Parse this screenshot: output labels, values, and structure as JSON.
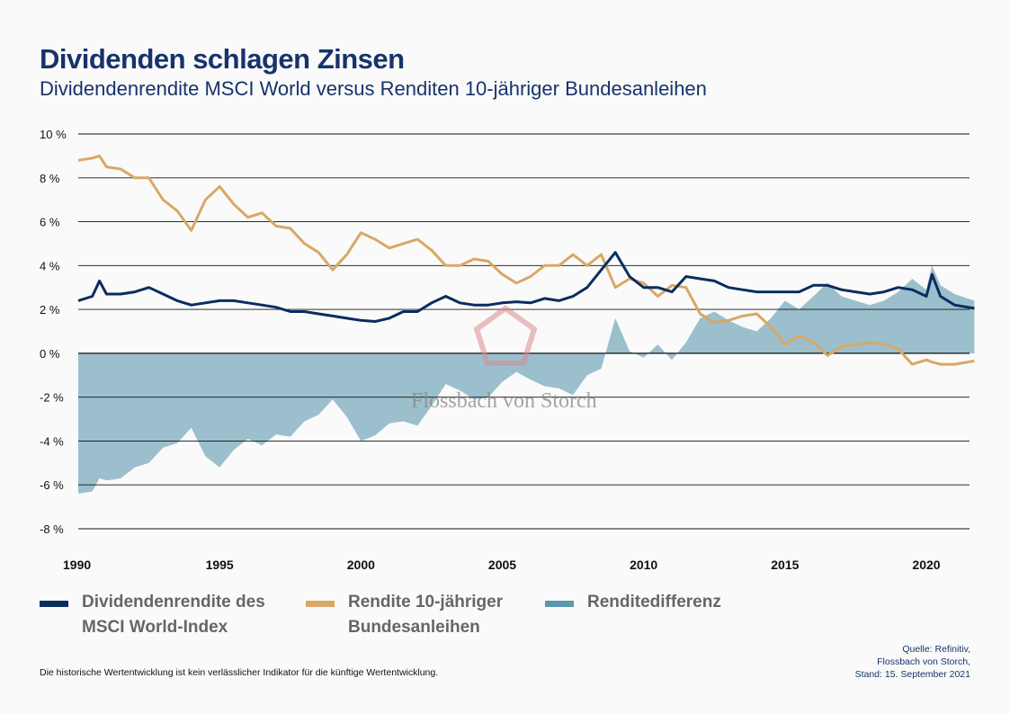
{
  "header": {
    "title": "Dividenden schlagen Zinsen",
    "subtitle": "Dividendenrendite MSCI World versus Renditen 10-jähriger Bundesanleihen"
  },
  "watermark": "Flossbach von Storch",
  "chart_data": {
    "type": "line",
    "title": "Dividenden schlagen Zinsen",
    "xlim": [
      1990,
      2021.7
    ],
    "ylim": [
      -8,
      10
    ],
    "yticks": [
      10,
      8,
      6,
      4,
      2,
      0,
      -2,
      -4,
      -6,
      -8
    ],
    "ytick_labels": [
      "10 %",
      "8 %",
      "6 %",
      "4 %",
      "2 %",
      "0 %",
      "-2 %",
      "-4 %",
      "-6 %",
      "-8 %"
    ],
    "xticks": [
      1990,
      1995,
      2000,
      2005,
      2010,
      2015,
      2020
    ],
    "xtick_labels": [
      "1990",
      "1995",
      "2000",
      "2005",
      "2010",
      "2015",
      "2020"
    ],
    "grid": true,
    "legend_placement": "bottom",
    "x": [
      1990,
      1990.5,
      1990.75,
      1991,
      1991.5,
      1992,
      1992.5,
      1993,
      1993.5,
      1994,
      1994.5,
      1995,
      1995.5,
      1996,
      1996.5,
      1997,
      1997.5,
      1998,
      1998.5,
      1999,
      1999.5,
      2000,
      2000.5,
      2001,
      2001.5,
      2002,
      2002.5,
      2003,
      2003.5,
      2004,
      2004.5,
      2005,
      2005.5,
      2006,
      2006.5,
      2007,
      2007.5,
      2008,
      2008.5,
      2009,
      2009.5,
      2010,
      2010.5,
      2011,
      2011.5,
      2012,
      2012.5,
      2013,
      2013.5,
      2014,
      2014.5,
      2015,
      2015.5,
      2016,
      2016.5,
      2017,
      2017.5,
      2018,
      2018.5,
      2019,
      2019.5,
      2020,
      2020.2,
      2020.5,
      2021,
      2021.7
    ],
    "series": [
      {
        "name": "Dividendenrendite des MSCI World-Index",
        "color": "#0b2d5e",
        "type": "line",
        "values": [
          2.4,
          2.6,
          3.3,
          2.7,
          2.7,
          2.8,
          3.0,
          2.7,
          2.4,
          2.2,
          2.3,
          2.4,
          2.4,
          2.3,
          2.2,
          2.1,
          1.9,
          1.9,
          1.8,
          1.7,
          1.6,
          1.5,
          1.45,
          1.6,
          1.9,
          1.9,
          2.3,
          2.6,
          2.3,
          2.2,
          2.2,
          2.3,
          2.35,
          2.3,
          2.5,
          2.4,
          2.6,
          3.0,
          3.8,
          4.6,
          3.5,
          3.0,
          3.0,
          2.8,
          3.5,
          3.4,
          3.3,
          3.0,
          2.9,
          2.8,
          2.8,
          2.8,
          2.8,
          3.1,
          3.1,
          2.9,
          2.8,
          2.7,
          2.8,
          3.0,
          2.9,
          2.6,
          3.6,
          2.6,
          2.2,
          2.05
        ]
      },
      {
        "name": "Rendite 10-jähriger Bundesanleihen",
        "color": "#d9a866",
        "type": "line",
        "values": [
          8.8,
          8.9,
          9.0,
          8.5,
          8.4,
          8.0,
          8.0,
          7.0,
          6.5,
          5.6,
          7.0,
          7.6,
          6.8,
          6.2,
          6.4,
          5.8,
          5.7,
          5.0,
          4.6,
          3.8,
          4.5,
          5.5,
          5.2,
          4.8,
          5.0,
          5.2,
          4.7,
          4.0,
          4.0,
          4.3,
          4.2,
          3.6,
          3.2,
          3.5,
          4.0,
          4.0,
          4.5,
          4.0,
          4.5,
          3.0,
          3.4,
          3.2,
          2.6,
          3.1,
          3.0,
          1.8,
          1.4,
          1.5,
          1.7,
          1.8,
          1.2,
          0.4,
          0.8,
          0.5,
          -0.1,
          0.3,
          0.4,
          0.5,
          0.4,
          0.2,
          -0.5,
          -0.3,
          -0.4,
          -0.5,
          -0.5,
          -0.35
        ]
      },
      {
        "name": "Renditedifferenz",
        "color": "#9bbfcd",
        "legend_color": "#5b98b0",
        "type": "area",
        "derived": "Dividendenrendite minus Rendite 10-jähriger Bundesanleihen"
      }
    ]
  },
  "legend": [
    {
      "label": "Dividendenrendite des MSCI World-Index",
      "color": "#0b2d5e"
    },
    {
      "label": "Rendite 10-jähriger Bundesanleihen",
      "color": "#d9a866"
    },
    {
      "label": "Renditedifferenz",
      "color": "#5b98b0"
    }
  ],
  "footer": {
    "disclaimer": "Die historische Wertentwicklung ist kein verlässlicher Indikator für die künftige Wertentwicklung.",
    "source_line1": "Quelle: Refinitiv,",
    "source_line2": "Flossbach von Storch,",
    "source_line3": "Stand: 15. September 2021"
  }
}
